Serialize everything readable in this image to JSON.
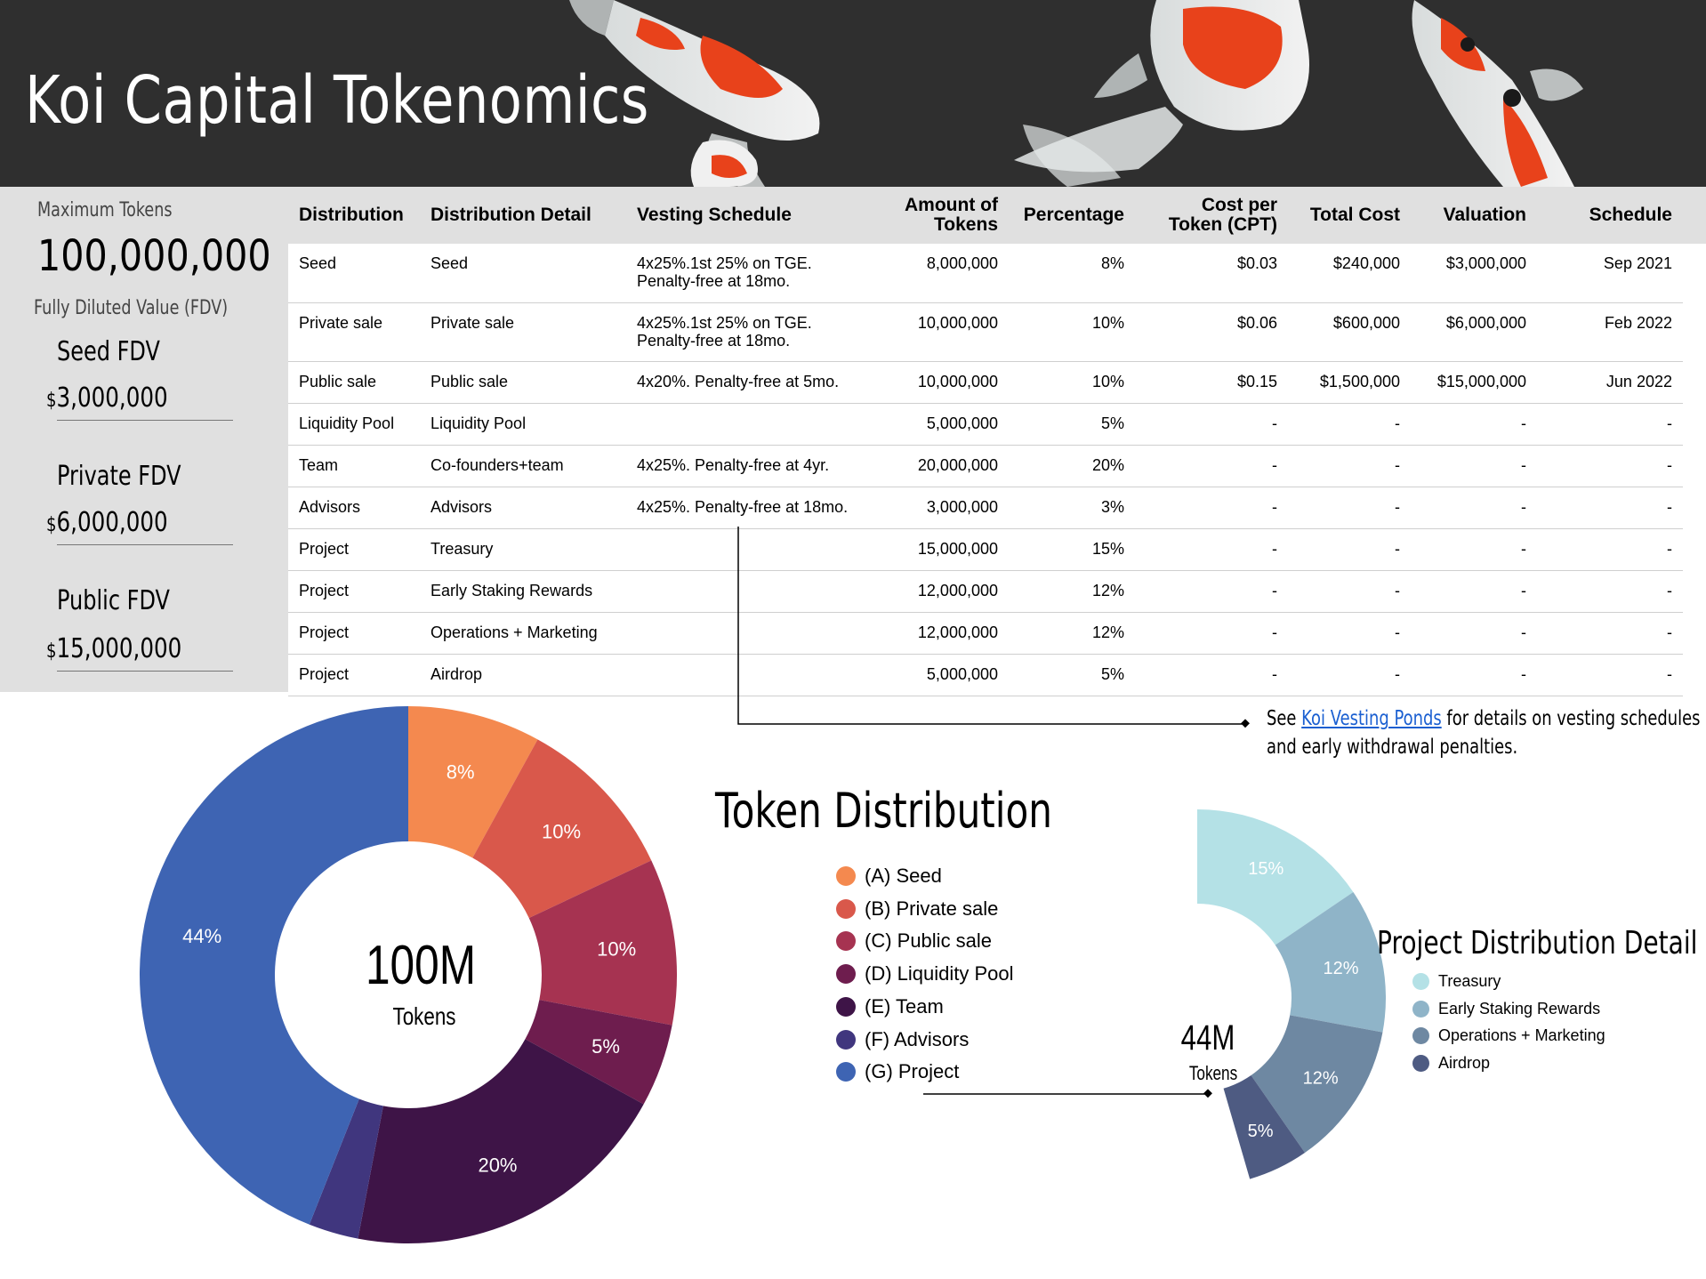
{
  "header": {
    "title": "Koi Capital Tokenomics"
  },
  "sidebar": {
    "max_tokens_label": "Maximum Tokens",
    "max_tokens_value": "100,000,000",
    "fdv_label": "Fully Diluted Value (FDV)",
    "fdv": [
      {
        "name": "Seed FDV",
        "currency": "$",
        "value": "3,000,000"
      },
      {
        "name": "Private FDV",
        "currency": "$",
        "value": "6,000,000"
      },
      {
        "name": "Public FDV",
        "currency": "$",
        "value": "15,000,000"
      }
    ]
  },
  "table": {
    "columns": [
      "Distribution",
      "Distribution Detail",
      "Vesting Schedule",
      "Amount of Tokens",
      "Percentage",
      "Cost per Token (CPT)",
      "Total Cost",
      "Valuation",
      "Schedule"
    ],
    "rows": [
      [
        "Seed",
        "Seed",
        "4x25%.1st 25% on TGE. Penalty-free at 18mo.",
        "8,000,000",
        "8%",
        "$0.03",
        "$240,000",
        "$3,000,000",
        "Sep 2021"
      ],
      [
        "Private sale",
        "Private sale",
        "4x25%.1st 25% on TGE. Penalty-free at 18mo.",
        "10,000,000",
        "10%",
        "$0.06",
        "$600,000",
        "$6,000,000",
        "Feb 2022"
      ],
      [
        "Public sale",
        "Public sale",
        "4x20%. Penalty-free at 5mo.",
        "10,000,000",
        "10%",
        "$0.15",
        "$1,500,000",
        "$15,000,000",
        "Jun 2022"
      ],
      [
        "Liquidity Pool",
        "Liquidity Pool",
        "",
        "5,000,000",
        "5%",
        "-",
        "-",
        "-",
        "-"
      ],
      [
        "Team",
        "Co-founders+team",
        "4x25%. Penalty-free at 4yr.",
        "20,000,000",
        "20%",
        "-",
        "-",
        "-",
        "-"
      ],
      [
        "Advisors",
        "Advisors",
        "4x25%. Penalty-free at 18mo.",
        "3,000,000",
        "3%",
        "-",
        "-",
        "-",
        "-"
      ],
      [
        "Project",
        "Treasury",
        "",
        "15,000,000",
        "15%",
        "-",
        "-",
        "-",
        "-"
      ],
      [
        "Project",
        "Early Staking Rewards",
        "",
        "12,000,000",
        "12%",
        "-",
        "-",
        "-",
        "-"
      ],
      [
        "Project",
        "Operations + Marketing",
        "",
        "12,000,000",
        "12%",
        "-",
        "-",
        "-",
        "-"
      ],
      [
        "Project",
        "Airdrop",
        "",
        "5,000,000",
        "5%",
        "-",
        "-",
        "-",
        "-"
      ]
    ]
  },
  "note": {
    "prefix": "See ",
    "link": "Koi Vesting Ponds",
    "suffix": " for details on vesting schedules",
    "line2": "and early withdrawal penalties."
  },
  "chart_data": [
    {
      "type": "pie",
      "title": "Token Distribution",
      "center_value": "100M",
      "center_label": "Tokens",
      "categories": [
        "(A) Seed",
        "(B) Private sale",
        "(C) Public sale",
        "(D) Liquidity Pool",
        "(E) Team",
        "(F) Advisors",
        "(G) Project"
      ],
      "values": [
        8,
        10,
        10,
        5,
        20,
        3,
        44
      ],
      "labels": [
        "8%",
        "10%",
        "10%",
        "5%",
        "20%",
        "",
        "44%"
      ],
      "colors": [
        "#f4894f",
        "#d9584b",
        "#a63351",
        "#6e1d4e",
        "#3e1447",
        "#40367e",
        "#3e64b3"
      ],
      "legend": "right"
    },
    {
      "type": "pie",
      "title": "Project Distribution Detail",
      "center_value": "44M",
      "center_label": "Tokens",
      "categories": [
        "Treasury",
        "Early Staking Rewards",
        "Operations + Marketing",
        "Airdrop"
      ],
      "values": [
        15,
        12,
        12,
        5
      ],
      "labels": [
        "15%",
        "12%",
        "12%",
        "5%"
      ],
      "colors": [
        "#b4e1e6",
        "#8fb4c8",
        "#6e88a2",
        "#4e5b82"
      ],
      "legend": "right"
    }
  ]
}
